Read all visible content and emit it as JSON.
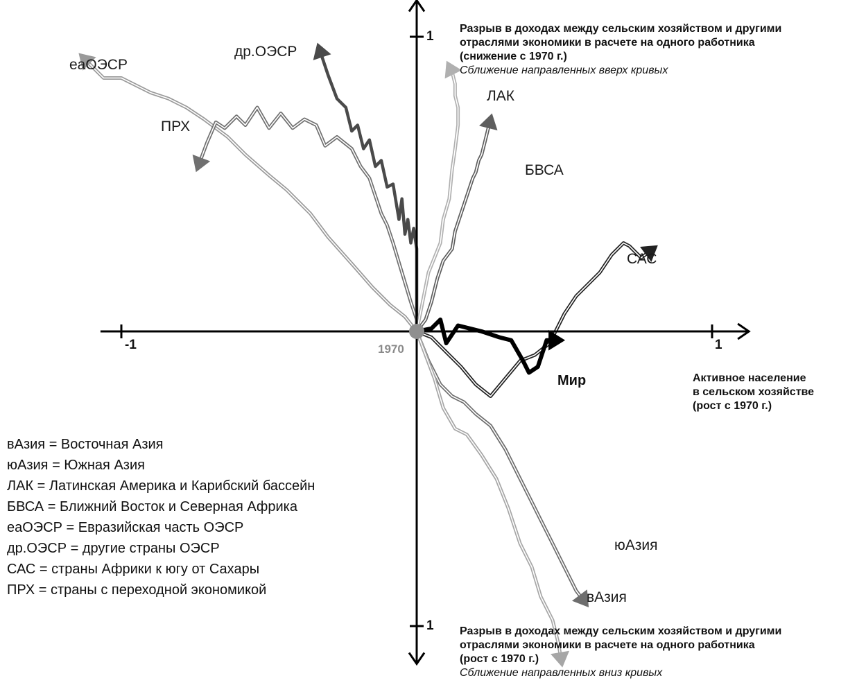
{
  "chart_data": {
    "type": "line",
    "origin_label": "1970",
    "x_axis": {
      "title_lines": [
        "Активное население",
        "в сельском хозяйстве",
        "(рост с 1970 г.)"
      ],
      "ticks": [
        {
          "value": -1,
          "label": "-1"
        },
        {
          "value": 1,
          "label": "1"
        }
      ],
      "range": [
        -1.08,
        1.12
      ]
    },
    "y_axis": {
      "top_title_lines": [
        "Разрыв в доходах между сельским хозяйством и другими",
        "отраслями экономики в расчете на одного работника",
        "(снижение с 1970 г.)"
      ],
      "top_note": "Сближение направленных вверх кривых",
      "bottom_title_lines": [
        "Разрыв в доходах между сельским хозяйством и другими",
        "отраслями экономики в расчете на одного работника",
        "(рост с 1970 г.)"
      ],
      "bottom_note": "Сближение направленных вниз кривых",
      "ticks": [
        {
          "value": 1,
          "label": "1"
        },
        {
          "value": -1,
          "label": "1"
        }
      ],
      "range": [
        -1.1,
        1.1
      ]
    },
    "series": [
      {
        "name": "eaОЭСР",
        "color": "#9a9a9a",
        "style": "double",
        "x": [
          0,
          -0.04,
          -0.09,
          -0.15,
          -0.22,
          -0.3,
          -0.36,
          -0.44,
          -0.5,
          -0.58,
          -0.64,
          -0.72,
          -0.78,
          -0.84,
          -0.9,
          -1.0,
          -1.06,
          -1.13
        ],
        "y": [
          0,
          0.05,
          0.09,
          0.15,
          0.23,
          0.32,
          0.4,
          0.48,
          0.53,
          0.6,
          0.66,
          0.72,
          0.76,
          0.79,
          0.81,
          0.86,
          0.86,
          0.93
        ]
      },
      {
        "name": "ПРХ",
        "color": "#707070",
        "style": "double",
        "x": [
          0,
          -0.02,
          -0.05,
          -0.08,
          -0.1,
          -0.12,
          -0.16,
          -0.19,
          -0.22,
          -0.27,
          -0.31,
          -0.34,
          -0.38,
          -0.42,
          -0.46,
          -0.5,
          -0.54,
          -0.58,
          -0.61,
          -0.65,
          -0.68,
          -0.71,
          -0.74
        ],
        "y": [
          0.04,
          0.1,
          0.2,
          0.3,
          0.36,
          0.4,
          0.52,
          0.56,
          0.62,
          0.66,
          0.63,
          0.7,
          0.72,
          0.69,
          0.74,
          0.69,
          0.76,
          0.7,
          0.73,
          0.69,
          0.71,
          0.64,
          0.56
        ]
      },
      {
        "name": "др.ОЭСР",
        "color": "#4a4a4a",
        "style": "bold",
        "x": [
          0,
          0,
          -0.01,
          -0.02,
          -0.03,
          -0.04,
          -0.05,
          -0.06,
          -0.08,
          -0.1,
          -0.12,
          -0.14,
          -0.16,
          -0.18,
          -0.2,
          -0.22,
          -0.24,
          -0.27,
          -0.3,
          -0.33
        ],
        "y": [
          0.22,
          0.28,
          0.35,
          0.3,
          0.38,
          0.33,
          0.45,
          0.38,
          0.5,
          0.49,
          0.58,
          0.56,
          0.65,
          0.62,
          0.7,
          0.68,
          0.76,
          0.79,
          0.87,
          0.96
        ]
      },
      {
        "name": "ЛАК",
        "color": "#b0b0b0",
        "style": "double",
        "x": [
          0.02,
          0.04,
          0.06,
          0.08,
          0.09,
          0.11,
          0.12,
          0.13,
          0.14,
          0.14,
          0.13,
          0.13,
          0.12,
          0.11
        ],
        "y": [
          0.1,
          0.2,
          0.25,
          0.3,
          0.38,
          0.45,
          0.55,
          0.62,
          0.7,
          0.76,
          0.8,
          0.84,
          0.88,
          0.9
        ]
      },
      {
        "name": "БВСА",
        "color": "#5e5e5e",
        "style": "double",
        "x": [
          0.03,
          0.05,
          0.07,
          0.09,
          0.12,
          0.13,
          0.15,
          0.17,
          0.19,
          0.2,
          0.21,
          0.22,
          0.23,
          0.24,
          0.25
        ],
        "y": [
          0.04,
          0.1,
          0.18,
          0.24,
          0.28,
          0.34,
          0.4,
          0.46,
          0.52,
          0.54,
          0.58,
          0.6,
          0.64,
          0.68,
          0.72
        ]
      },
      {
        "name": "САС",
        "color": "#222222",
        "style": "double",
        "x": [
          0.05,
          0.1,
          0.15,
          0.2,
          0.25,
          0.3,
          0.35,
          0.4,
          0.45,
          0.5,
          0.54,
          0.58,
          0.62,
          0.66,
          0.7,
          0.72,
          0.74,
          0.76,
          0.8
        ],
        "y": [
          -0.02,
          -0.07,
          -0.12,
          -0.18,
          -0.22,
          -0.16,
          -0.1,
          -0.08,
          -0.04,
          0.06,
          0.12,
          0.16,
          0.2,
          0.26,
          0.3,
          0.29,
          0.27,
          0.25,
          0.28
        ]
      },
      {
        "name": "Мир",
        "color": "#000000",
        "style": "thick",
        "x": [
          0.05,
          0.08,
          0.1,
          0.14,
          0.18,
          0.22,
          0.28,
          0.32,
          0.36,
          0.38,
          0.41,
          0.44,
          0.48
        ],
        "y": [
          0.01,
          0.04,
          -0.04,
          0.02,
          0.01,
          0.0,
          -0.02,
          -0.03,
          -0.1,
          -0.14,
          -0.12,
          -0.03,
          -0.03
        ]
      },
      {
        "name": "юАзия",
        "color": "#6e6e6e",
        "style": "double",
        "x": [
          0.04,
          0.08,
          0.12,
          0.16,
          0.2,
          0.25,
          0.3,
          0.34,
          0.38,
          0.42,
          0.46,
          0.5,
          0.54,
          0.57
        ],
        "y": [
          -0.1,
          -0.18,
          -0.22,
          -0.24,
          -0.28,
          -0.32,
          -0.4,
          -0.48,
          -0.56,
          -0.64,
          -0.72,
          -0.8,
          -0.88,
          -0.92
        ]
      },
      {
        "name": "вАзия",
        "color": "#a6a6a6",
        "style": "double",
        "x": [
          0.03,
          0.06,
          0.09,
          0.13,
          0.17,
          0.22,
          0.27,
          0.31,
          0.35,
          0.39,
          0.42,
          0.46,
          0.48,
          0.49
        ],
        "y": [
          -0.08,
          -0.16,
          -0.26,
          -0.33,
          -0.35,
          -0.42,
          -0.5,
          -0.6,
          -0.72,
          -0.8,
          -0.9,
          -0.98,
          -1.06,
          -1.12
        ]
      }
    ],
    "legend_lines": [
      "вАзия = Восточная Азия",
      "юАзия = Южная Азия",
      "ЛАК = Латинская Америка и Карибский бассейн",
      "БВСА = Ближний Восток и Северная Африка",
      "еаОЭСР = Евразийская часть ОЭСР",
      "др.ОЭСР = другие страны ОЭСР",
      "САС = страны Африки к югу от Сахары",
      "ПРХ = страны с переходной экономикой"
    ]
  },
  "labels": {
    "eaoecd": "еаОЭСР",
    "droecd": "др.ОЭСР",
    "prh": "ПРХ",
    "lak": "ЛАК",
    "bvsa": "БВСА",
    "sas": "САС",
    "mir": "Мир",
    "yuasia": "юАзия",
    "vasia": "вАзия"
  }
}
